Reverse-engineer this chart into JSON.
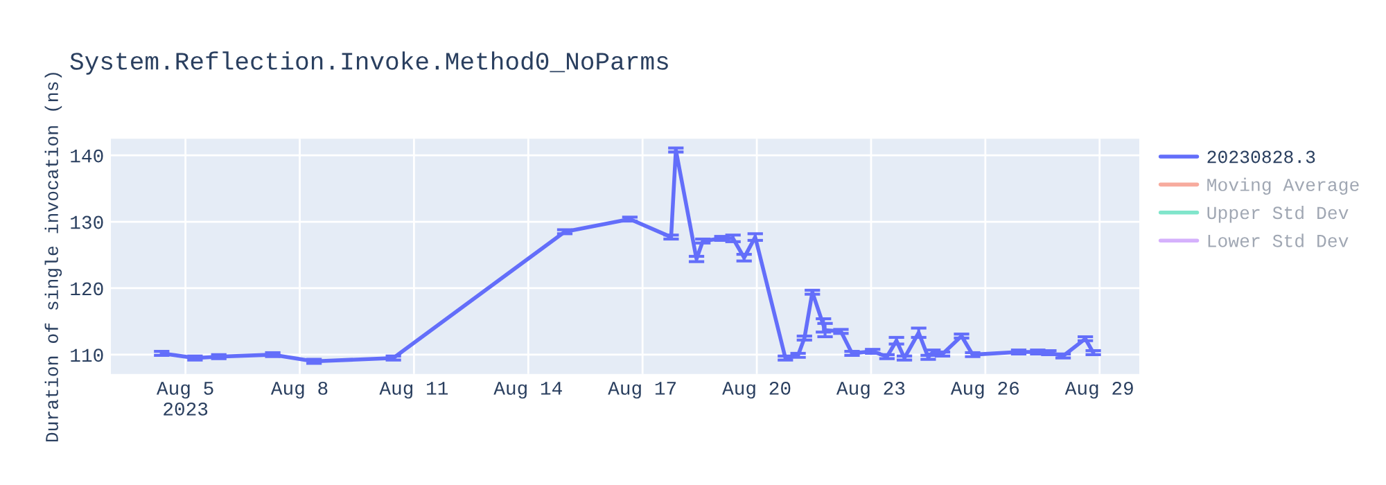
{
  "chart_data": {
    "type": "line",
    "title": "System.Reflection.Invoke.Method0_NoParms",
    "ylabel": "Duration of single invocation (ns)",
    "x": [
      "2023-08-04T09:00",
      "2023-08-05T06:00",
      "2023-08-05T21:00",
      "2023-08-07T07:00",
      "2023-08-08T09:00",
      "2023-08-10T11:00",
      "2023-08-14T23:00",
      "2023-08-16T16:00",
      "2023-08-17T18:00",
      "2023-08-17T21:00",
      "2023-08-18T10:00",
      "2023-08-18T14:00",
      "2023-08-19T02:00",
      "2023-08-19T09:00",
      "2023-08-19T16:00",
      "2023-08-19T23:00",
      "2023-08-20T18:00",
      "2023-08-21T02:00",
      "2023-08-21T06:00",
      "2023-08-21T11:00",
      "2023-08-21T18:00",
      "2023-08-21T19:00",
      "2023-08-22T05:00",
      "2023-08-22T12:00",
      "2023-08-23T01:00",
      "2023-08-23T10:00",
      "2023-08-23T16:00",
      "2023-08-23T21:00",
      "2023-08-24T06:00",
      "2023-08-24T12:00",
      "2023-08-24T15:00",
      "2023-08-24T21:00",
      "2023-08-25T09:00",
      "2023-08-25T16:00",
      "2023-08-26T21:00",
      "2023-08-27T09:00",
      "2023-08-27T16:00",
      "2023-08-28T01:00",
      "2023-08-28T15:00",
      "2023-08-28T20:00"
    ],
    "series": [
      {
        "name": "20230828.3",
        "color": "#636efa",
        "values": [
          110.2,
          109.5,
          109.7,
          110.0,
          109.0,
          109.5,
          128.5,
          130.4,
          127.7,
          140.8,
          124.4,
          127.1,
          127.5,
          127.5,
          124.6,
          127.7,
          109.5,
          109.9,
          112.5,
          119.4,
          114.4,
          113.7,
          113.5,
          110.2,
          110.5,
          109.7,
          112.1,
          109.5,
          113.3,
          109.6,
          110.4,
          110.1,
          112.8,
          110.0,
          110.4,
          110.4,
          110.3,
          109.8,
          112.4,
          110.3
        ],
        "errors": [
          0.3,
          0.3,
          0.3,
          0.3,
          0.3,
          0.3,
          0.3,
          0.3,
          0.3,
          0.3,
          0.4,
          0.3,
          0.3,
          0.5,
          0.5,
          0.5,
          0.3,
          0.3,
          0.3,
          0.3,
          1.0,
          1.0,
          0.3,
          0.3,
          0.3,
          0.3,
          0.5,
          0.3,
          0.7,
          0.3,
          0.3,
          0.3,
          0.3,
          0.3,
          0.3,
          0.3,
          0.3,
          0.3,
          0.3,
          0.3
        ]
      },
      {
        "name": "Moving Average",
        "color": "#f7ab9e",
        "values": [
          null,
          null,
          null,
          null,
          null,
          null,
          null,
          null,
          null,
          null,
          null,
          null,
          null,
          null,
          null,
          null,
          null,
          null,
          null,
          null,
          null,
          null,
          null,
          null,
          null,
          null,
          null,
          null,
          null,
          null,
          null,
          null,
          null,
          null,
          null,
          null,
          null,
          null,
          null,
          null
        ]
      },
      {
        "name": "Upper Std Dev",
        "color": "#80e5cb",
        "values": [
          null,
          null,
          null,
          null,
          null,
          null,
          null,
          null,
          null,
          null,
          null,
          null,
          null,
          null,
          null,
          null,
          null,
          null,
          null,
          null,
          null,
          null,
          null,
          null,
          null,
          null,
          null,
          null,
          null,
          null,
          null,
          null,
          null,
          null,
          null,
          null,
          null,
          null,
          null,
          null
        ]
      },
      {
        "name": "Lower Std Dev",
        "color": "#d5b1fc",
        "values": [
          null,
          null,
          null,
          null,
          null,
          null,
          null,
          null,
          null,
          null,
          null,
          null,
          null,
          null,
          null,
          null,
          null,
          null,
          null,
          null,
          null,
          null,
          null,
          null,
          null,
          null,
          null,
          null,
          null,
          null,
          null,
          null,
          null,
          null,
          null,
          null,
          null,
          null,
          null,
          null
        ]
      }
    ],
    "xlim": [
      "2023-08-03T01:00",
      "2023-08-30T01:00"
    ],
    "xticks": [
      {
        "value": "2023-08-05",
        "label": "Aug 5\n2023"
      },
      {
        "value": "2023-08-08",
        "label": "Aug 8"
      },
      {
        "value": "2023-08-11",
        "label": "Aug 11"
      },
      {
        "value": "2023-08-14",
        "label": "Aug 14"
      },
      {
        "value": "2023-08-17",
        "label": "Aug 17"
      },
      {
        "value": "2023-08-20",
        "label": "Aug 20"
      },
      {
        "value": "2023-08-23",
        "label": "Aug 23"
      },
      {
        "value": "2023-08-26",
        "label": "Aug 26"
      },
      {
        "value": "2023-08-29",
        "label": "Aug 29"
      }
    ],
    "ylim": [
      107.1,
      142.5
    ],
    "yticks": [
      110,
      120,
      130,
      140
    ],
    "grid": true,
    "legend": "top right",
    "marker": "none",
    "line_style": "solid"
  }
}
